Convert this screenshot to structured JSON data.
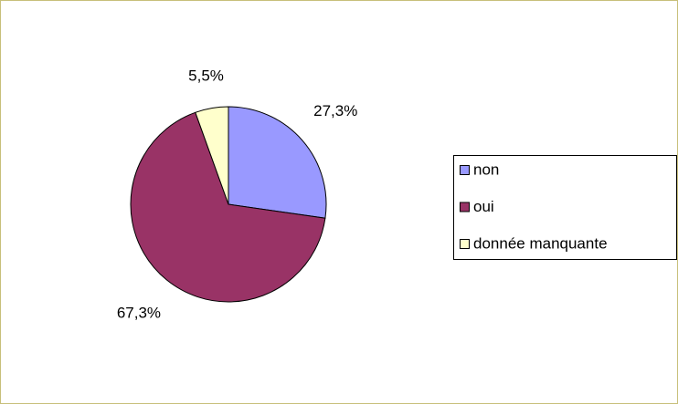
{
  "chart_data": {
    "type": "pie",
    "categories": [
      "non",
      "oui",
      "donnée manquante"
    ],
    "values": [
      27.3,
      67.3,
      5.5
    ],
    "value_labels": [
      "27,3%",
      "67,3%",
      "5,5%"
    ],
    "colors": [
      "#9999ff",
      "#993366",
      "#ffffcc"
    ],
    "legend": "right"
  }
}
